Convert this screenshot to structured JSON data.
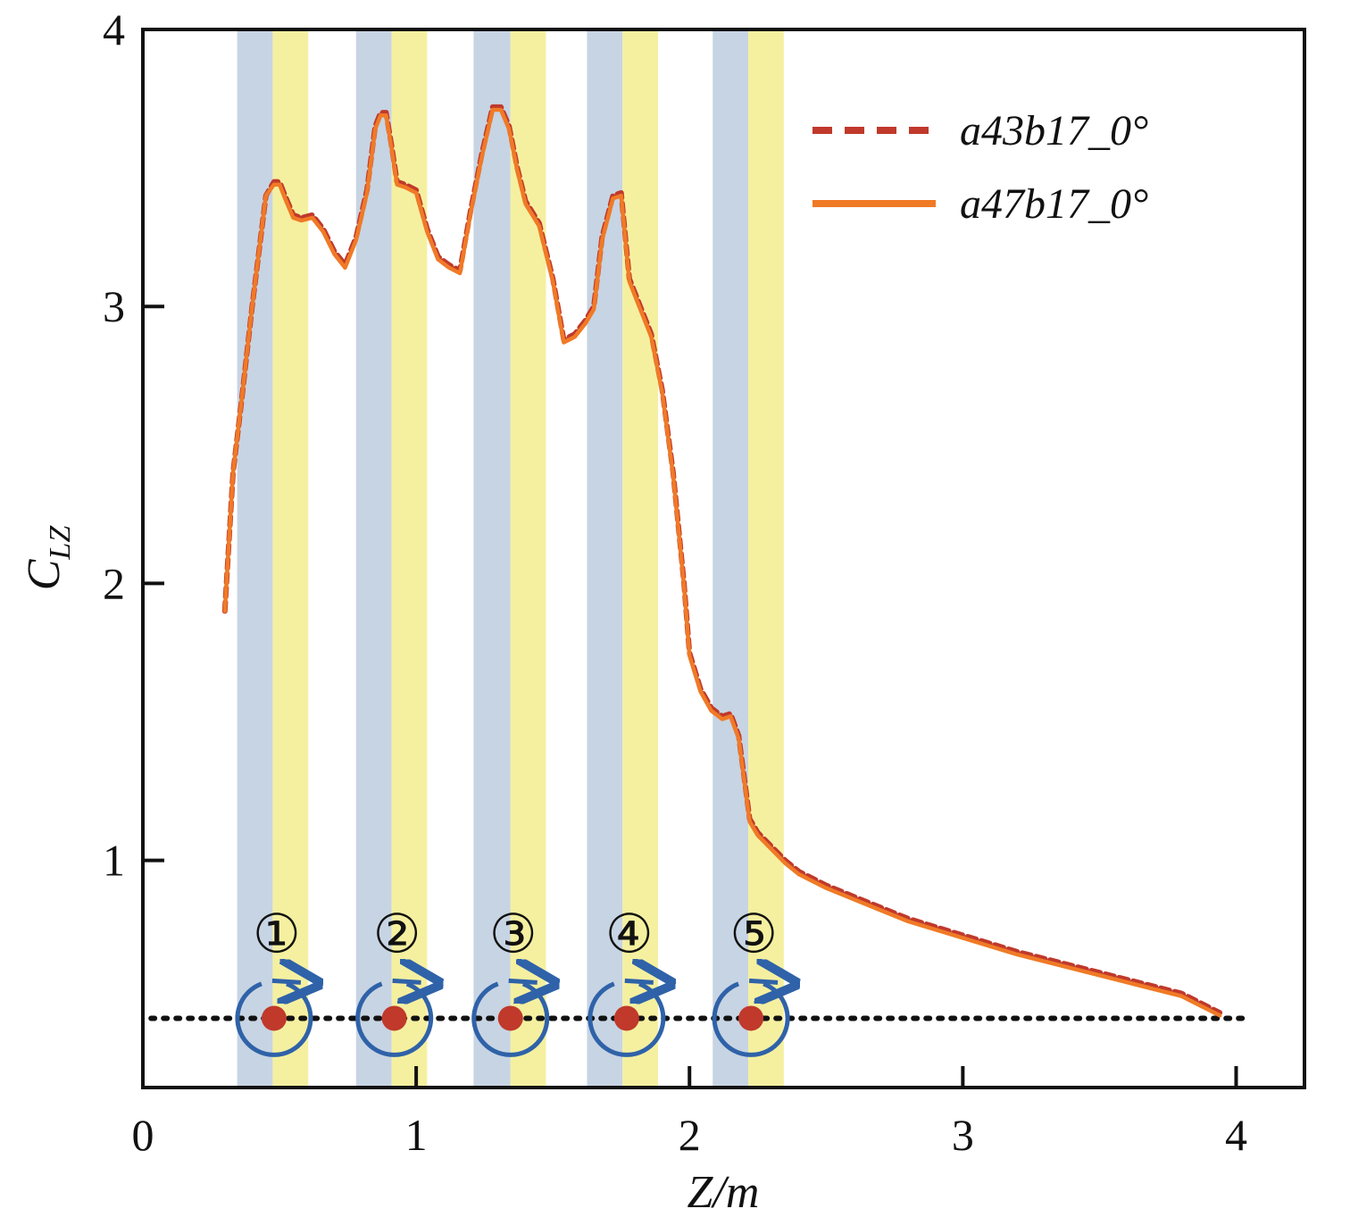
{
  "chart_data": {
    "type": "line",
    "xlabel": "Z/m",
    "ylabel_main": "C",
    "ylabel_sub": "LZ",
    "xlim": [
      0,
      4.25
    ],
    "ylim": [
      0.18,
      4
    ],
    "xticks": [
      0,
      1,
      2,
      3,
      4
    ],
    "yticks": [
      1,
      2,
      3,
      4
    ],
    "xtick_labels": [
      "0",
      "1",
      "2",
      "3",
      "4"
    ],
    "ytick_labels": [
      "1",
      "2",
      "3",
      "4"
    ],
    "grid": false,
    "legend_position": "top-right",
    "series": [
      {
        "name": "a43b17_0°",
        "style": "dashed",
        "color": "#c0392b",
        "x": [
          0.3,
          0.33,
          0.36,
          0.4,
          0.45,
          0.48,
          0.5,
          0.52,
          0.55,
          0.58,
          0.62,
          0.66,
          0.7,
          0.74,
          0.78,
          0.82,
          0.85,
          0.87,
          0.89,
          0.91,
          0.93,
          0.96,
          1.0,
          1.04,
          1.08,
          1.12,
          1.16,
          1.2,
          1.24,
          1.28,
          1.31,
          1.34,
          1.37,
          1.4,
          1.45,
          1.5,
          1.54,
          1.58,
          1.62,
          1.65,
          1.68,
          1.72,
          1.75,
          1.78,
          1.82,
          1.86,
          1.9,
          1.94,
          1.98,
          2.0,
          2.04,
          2.08,
          2.12,
          2.15,
          2.18,
          2.2,
          2.22,
          2.25,
          2.3,
          2.35,
          2.4,
          2.5,
          2.6,
          2.7,
          2.8,
          3.0,
          3.2,
          3.4,
          3.6,
          3.8,
          3.94
        ],
        "y": [
          1.9,
          2.4,
          2.65,
          3.0,
          3.4,
          3.45,
          3.45,
          3.4,
          3.33,
          3.32,
          3.33,
          3.28,
          3.2,
          3.15,
          3.25,
          3.42,
          3.65,
          3.7,
          3.7,
          3.58,
          3.45,
          3.44,
          3.42,
          3.28,
          3.18,
          3.15,
          3.13,
          3.35,
          3.55,
          3.72,
          3.72,
          3.65,
          3.5,
          3.38,
          3.3,
          3.1,
          2.88,
          2.9,
          2.95,
          3.0,
          3.25,
          3.4,
          3.41,
          3.1,
          3.0,
          2.9,
          2.7,
          2.4,
          2.0,
          1.75,
          1.62,
          1.55,
          1.52,
          1.53,
          1.45,
          1.3,
          1.15,
          1.1,
          1.05,
          1.0,
          0.96,
          0.91,
          0.87,
          0.83,
          0.79,
          0.73,
          0.67,
          0.62,
          0.57,
          0.52,
          0.45
        ]
      },
      {
        "name": "a47b17_0°",
        "style": "solid",
        "color": "#f07a26",
        "x": [
          0.3,
          0.33,
          0.36,
          0.4,
          0.45,
          0.48,
          0.5,
          0.52,
          0.55,
          0.58,
          0.62,
          0.66,
          0.7,
          0.74,
          0.78,
          0.82,
          0.85,
          0.87,
          0.89,
          0.91,
          0.93,
          0.96,
          1.0,
          1.04,
          1.08,
          1.12,
          1.16,
          1.2,
          1.24,
          1.28,
          1.31,
          1.34,
          1.37,
          1.4,
          1.45,
          1.5,
          1.54,
          1.58,
          1.62,
          1.65,
          1.68,
          1.72,
          1.75,
          1.78,
          1.82,
          1.86,
          1.9,
          1.94,
          1.98,
          2.0,
          2.04,
          2.08,
          2.12,
          2.15,
          2.18,
          2.2,
          2.22,
          2.25,
          2.3,
          2.35,
          2.4,
          2.5,
          2.6,
          2.7,
          2.8,
          3.0,
          3.2,
          3.4,
          3.6,
          3.8,
          3.94
        ],
        "y": [
          1.9,
          2.4,
          2.65,
          3.0,
          3.4,
          3.44,
          3.44,
          3.39,
          3.32,
          3.31,
          3.32,
          3.27,
          3.19,
          3.14,
          3.24,
          3.41,
          3.64,
          3.69,
          3.69,
          3.57,
          3.44,
          3.43,
          3.41,
          3.27,
          3.17,
          3.14,
          3.12,
          3.34,
          3.54,
          3.71,
          3.71,
          3.64,
          3.49,
          3.37,
          3.29,
          3.09,
          2.87,
          2.89,
          2.94,
          2.99,
          3.24,
          3.39,
          3.4,
          3.09,
          2.99,
          2.89,
          2.69,
          2.39,
          1.99,
          1.74,
          1.61,
          1.54,
          1.51,
          1.52,
          1.44,
          1.29,
          1.14,
          1.09,
          1.04,
          0.99,
          0.95,
          0.9,
          0.86,
          0.82,
          0.78,
          0.72,
          0.66,
          0.61,
          0.56,
          0.51,
          0.44
        ]
      }
    ],
    "bands": [
      {
        "blue": [
          0.345,
          0.475
        ],
        "yellow": [
          0.475,
          0.605
        ]
      },
      {
        "blue": [
          0.78,
          0.91
        ],
        "yellow": [
          0.91,
          1.04
        ]
      },
      {
        "blue": [
          1.21,
          1.345
        ],
        "yellow": [
          1.345,
          1.475
        ]
      },
      {
        "blue": [
          1.625,
          1.755
        ],
        "yellow": [
          1.755,
          1.885
        ]
      },
      {
        "blue": [
          2.085,
          2.215
        ],
        "yellow": [
          2.215,
          2.345
        ]
      }
    ],
    "band_colors": {
      "blue": "#c7d4e3",
      "yellow": "#f5f0a0"
    },
    "rotors": {
      "centers_x": [
        0.48,
        0.92,
        1.345,
        1.77,
        2.225
      ],
      "y": 0.43,
      "labels": [
        "①",
        "②",
        "③",
        "④",
        "⑤"
      ],
      "ring_color": "#2f62a8",
      "dot_color": "#c0392b"
    },
    "baseline": {
      "x": [
        0.03,
        4.03
      ],
      "y": 0.43
    }
  }
}
